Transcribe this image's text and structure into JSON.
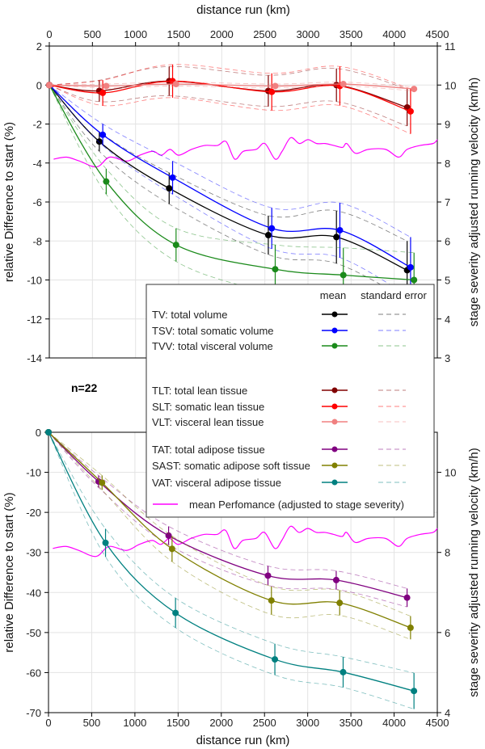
{
  "chart_data": [
    {
      "type": "line",
      "panel": "top",
      "xlabel": "distance run (km)",
      "ylabel": "relative Difference to start (%)",
      "y2label": "stage severity adjusted running velocity (km/h)",
      "xlim": [
        0,
        4500
      ],
      "ylim": [
        -14,
        2
      ],
      "y2lim": [
        3,
        11
      ],
      "xticks": [
        0,
        500,
        1000,
        1500,
        2000,
        2500,
        3000,
        3500,
        4000,
        4500
      ],
      "yticks": [
        2,
        0,
        -2,
        -4,
        -6,
        -8,
        -10,
        -12,
        -14
      ],
      "y2ticks": [
        11,
        10,
        9,
        8,
        7,
        6,
        5,
        4,
        3
      ],
      "grid": true,
      "series": [
        {
          "name": "TV",
          "color": "#000000",
          "x": [
            0,
            580,
            1390,
            2540,
            3330,
            4150
          ],
          "values": [
            0,
            -2.9,
            -5.3,
            -7.7,
            -7.8,
            -9.5
          ],
          "se": [
            0,
            0.5,
            0.8,
            1.0,
            1.35,
            1.5
          ]
        },
        {
          "name": "TSV",
          "color": "#0000ff",
          "x": [
            0,
            620,
            1430,
            2580,
            3370,
            4190
          ],
          "values": [
            0,
            -2.55,
            -4.75,
            -7.35,
            -7.45,
            -9.35
          ],
          "se": [
            0,
            0.55,
            0.85,
            1.05,
            1.4,
            1.55
          ]
        },
        {
          "name": "TVV",
          "color": "#1a8a1a",
          "x": [
            0,
            660,
            1470,
            2620,
            3410,
            4230
          ],
          "values": [
            0,
            -4.95,
            -8.2,
            -9.45,
            -9.75,
            -10.0
          ],
          "se": [
            0,
            0.65,
            0.85,
            1.25,
            1.4,
            1.4
          ]
        },
        {
          "name": "TLT",
          "color": "#800000",
          "x": [
            0,
            580,
            1390,
            2540,
            3330,
            4150
          ],
          "values": [
            0,
            -0.3,
            0.2,
            -0.3,
            0,
            -1.15
          ],
          "se": [
            0,
            0.55,
            0.75,
            0.8,
            0.85,
            0.95
          ]
        },
        {
          "name": "SLT",
          "color": "#ff0000",
          "x": [
            0,
            620,
            1430,
            2580,
            3370,
            4190
          ],
          "values": [
            0,
            -0.4,
            0.2,
            -0.35,
            -0.05,
            -1.35
          ],
          "se": [
            0,
            0.65,
            0.85,
            0.95,
            1.0,
            1.15
          ]
        },
        {
          "name": "VLT",
          "color": "#f08080",
          "x": [
            0,
            660,
            1470,
            2620,
            3410,
            4230
          ],
          "values": [
            0,
            -0.05,
            0.05,
            -0.05,
            0.05,
            -0.2
          ],
          "se": [
            0,
            0.1,
            0.1,
            0.1,
            0.1,
            0.1
          ]
        }
      ]
    },
    {
      "type": "line",
      "panel": "bottom",
      "xlabel": "distance run (km)",
      "ylabel": "relative Difference to start (%)",
      "y2label": "stage severity adjusted running velocity (km/h)",
      "xlim": [
        0,
        4500
      ],
      "ylim": [
        -70,
        0
      ],
      "y2lim": [
        4,
        11
      ],
      "xticks": [
        0,
        500,
        1000,
        1500,
        2000,
        2500,
        3000,
        3500,
        4000,
        4500
      ],
      "yticks": [
        0,
        -10,
        -20,
        -30,
        -40,
        -50,
        -60,
        -70
      ],
      "y2ticks": [
        10,
        8,
        6,
        4
      ],
      "grid": true,
      "series": [
        {
          "name": "TAT",
          "color": "#800080",
          "x": [
            0,
            580,
            1390,
            2540,
            3330,
            4150
          ],
          "values": [
            0,
            -12.3,
            -25.8,
            -35.8,
            -36.9,
            -41.3
          ],
          "se": [
            0,
            1.5,
            2.3,
            2.4,
            2.3,
            2.3
          ]
        },
        {
          "name": "SAST",
          "color": "#808000",
          "x": [
            0,
            620,
            1430,
            2580,
            3370,
            4190
          ],
          "values": [
            0,
            -12.6,
            -29.1,
            -42.0,
            -42.6,
            -48.8
          ],
          "se": [
            0,
            1.8,
            3.2,
            3.5,
            3.1,
            2.9
          ]
        },
        {
          "name": "VAT",
          "color": "#008080",
          "x": [
            0,
            660,
            1470,
            2620,
            3410,
            4230
          ],
          "values": [
            0,
            -27.6,
            -45.1,
            -56.7,
            -59.9,
            -64.6
          ],
          "se": [
            0,
            3.5,
            3.7,
            3.9,
            3.8,
            4.5
          ]
        }
      ]
    }
  ],
  "performance": {
    "name": "mean Perfomance (adjusted to stage severity)",
    "color": "#ff00ff",
    "x": [
      50,
      200,
      350,
      550,
      700,
      900,
      1050,
      1200,
      1300,
      1400,
      1500,
      1650,
      1800,
      1950,
      2050,
      2150,
      2250,
      2400,
      2500,
      2620,
      2700,
      2800,
      2900,
      3000,
      3100,
      3200,
      3300,
      3400,
      3450,
      3550,
      3700,
      3900,
      4050,
      4150,
      4300,
      4450,
      4500
    ],
    "values": [
      8.1,
      8.15,
      8.05,
      7.9,
      8.15,
      8.05,
      8.2,
      8.3,
      8.2,
      8.35,
      8.2,
      8.35,
      8.45,
      8.45,
      8.55,
      8.1,
      8.3,
      8.35,
      8.5,
      8.1,
      8.3,
      8.65,
      8.5,
      8.6,
      8.5,
      8.5,
      8.45,
      8.4,
      8.5,
      8.25,
      8.35,
      8.35,
      8.15,
      8.35,
      8.45,
      8.5,
      8.6
    ]
  },
  "n_label": "n=22",
  "legend": {
    "header_mean": "mean",
    "header_se": "standard error",
    "items": [
      {
        "key": "TV",
        "label": "TV: total volume",
        "color": "#000000"
      },
      {
        "key": "TSV",
        "label": "TSV: total somatic volume",
        "color": "#0000ff"
      },
      {
        "key": "TVV",
        "label": "TVV: total visceral volume",
        "color": "#1a8a1a"
      },
      {
        "key": "TLT",
        "label": "TLT: total lean tissue",
        "color": "#800000"
      },
      {
        "key": "SLT",
        "label": "SLT: somatic lean tissue",
        "color": "#ff0000"
      },
      {
        "key": "VLT",
        "label": "VLT: visceral lean tissue",
        "color": "#f08080"
      },
      {
        "key": "TAT",
        "label": "TAT: total adipose tissue",
        "color": "#800080"
      },
      {
        "key": "SAST",
        "label": "SAST: somatic adipose soft tissue",
        "color": "#808000"
      },
      {
        "key": "VAT",
        "label": "VAT: visceral adipose tissue",
        "color": "#008080"
      }
    ],
    "performance_label": "mean Perfomance (adjusted to stage severity)"
  }
}
